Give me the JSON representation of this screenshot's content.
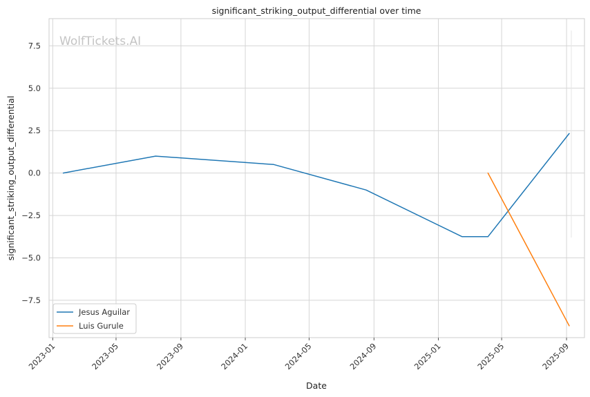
{
  "chart_data": {
    "type": "line",
    "title": "significant_striking_output_differential over time",
    "xlabel": "Date",
    "ylabel": "significant_striking_output_differential",
    "watermark": "WolfTickets.AI",
    "x_ticks": [
      "2023-01",
      "2023-05",
      "2023-09",
      "2024-01",
      "2024-05",
      "2024-09",
      "2025-01",
      "2025-05",
      "2025-09"
    ],
    "y_ticks": [
      "−7.5",
      "−5.0",
      "−2.5",
      "0.0",
      "2.5",
      "5.0",
      "7.5"
    ],
    "y_tick_values": [
      -7.5,
      -5.0,
      -2.5,
      0.0,
      2.5,
      5.0,
      7.5
    ],
    "xlim": [
      "2022-12-25",
      "2025-10-05"
    ],
    "ylim": [
      -9.7,
      9.1
    ],
    "grid": true,
    "legend_position": "lower-left",
    "series": [
      {
        "name": "Jesus Aguilar",
        "color": "#1f77b4",
        "x": [
          "2023-01-21",
          "2023-07-15",
          "2024-02-24",
          "2024-08-17",
          "2025-02-15",
          "2025-04-05",
          "2025-09-06"
        ],
        "y": [
          0.0,
          1.0,
          0.5,
          -1.0,
          -3.75,
          -3.75,
          2.33
        ]
      },
      {
        "name": "Luis Gurule",
        "color": "#ff7f0e",
        "x": [
          "2025-04-05",
          "2025-09-06"
        ],
        "y": [
          0.0,
          -9.0
        ]
      }
    ],
    "marker_line": {
      "color": "#e6e6e6",
      "x": "2025-09-10",
      "y_range": [
        -3.8,
        8.4
      ]
    }
  }
}
